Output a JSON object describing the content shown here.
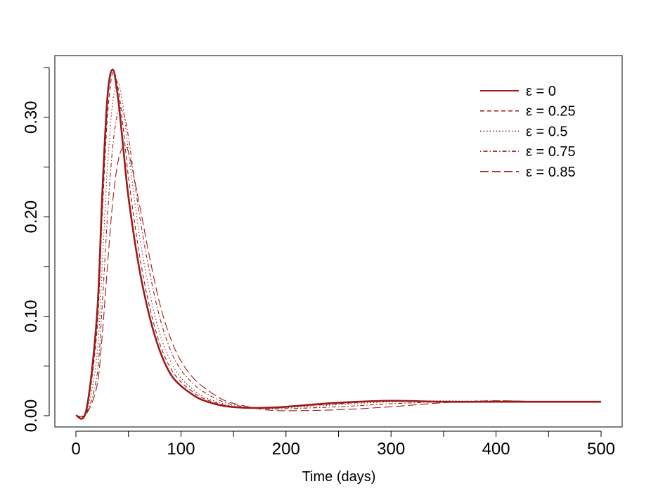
{
  "chart_data": {
    "type": "line",
    "title": "",
    "xlabel": "Time (days)",
    "ylabel": "",
    "xlim": [
      0,
      500
    ],
    "ylim": [
      0,
      0.35
    ],
    "xticks": [
      "0",
      "100",
      "200",
      "300",
      "400",
      "500"
    ],
    "yticks": [
      "0.00",
      "0.10",
      "0.20",
      "0.30"
    ],
    "grid": false,
    "legend_position": "top-right",
    "color": "#9b1b1b",
    "x": [
      0,
      10,
      20,
      25,
      30,
      35,
      40,
      45,
      50,
      60,
      70,
      80,
      90,
      100,
      110,
      120,
      140,
      160,
      180,
      200,
      250,
      300,
      350,
      400,
      450,
      500
    ],
    "series": [
      {
        "name": "ε = 0",
        "dash": "solid",
        "values": [
          0.0,
          0.006,
          0.1,
          0.22,
          0.32,
          0.348,
          0.32,
          0.27,
          0.22,
          0.15,
          0.1,
          0.065,
          0.042,
          0.03,
          0.022,
          0.016,
          0.01,
          0.008,
          0.008,
          0.009,
          0.013,
          0.015,
          0.014,
          0.014,
          0.014,
          0.014
        ]
      },
      {
        "name": "ε = 0.25",
        "dash": "dashed",
        "values": [
          0.0,
          0.005,
          0.085,
          0.2,
          0.3,
          0.345,
          0.33,
          0.29,
          0.24,
          0.165,
          0.11,
          0.072,
          0.048,
          0.034,
          0.025,
          0.018,
          0.011,
          0.008,
          0.008,
          0.009,
          0.012,
          0.015,
          0.014,
          0.014,
          0.014,
          0.014
        ]
      },
      {
        "name": "ε = 0.5",
        "dash": "dotted",
        "values": [
          0.0,
          0.004,
          0.06,
          0.15,
          0.25,
          0.315,
          0.335,
          0.31,
          0.265,
          0.185,
          0.125,
          0.082,
          0.055,
          0.038,
          0.028,
          0.02,
          0.012,
          0.008,
          0.007,
          0.008,
          0.011,
          0.014,
          0.015,
          0.014,
          0.014,
          0.014
        ]
      },
      {
        "name": "ε = 0.75",
        "dash": "dotdash",
        "values": [
          0.0,
          0.003,
          0.04,
          0.11,
          0.2,
          0.27,
          0.305,
          0.305,
          0.28,
          0.205,
          0.145,
          0.098,
          0.066,
          0.046,
          0.034,
          0.025,
          0.014,
          0.009,
          0.007,
          0.007,
          0.009,
          0.012,
          0.014,
          0.015,
          0.014,
          0.014
        ]
      },
      {
        "name": "ε = 0.85",
        "dash": "longdash",
        "values": [
          0.0,
          0.002,
          0.03,
          0.08,
          0.15,
          0.215,
          0.255,
          0.27,
          0.265,
          0.215,
          0.16,
          0.112,
          0.078,
          0.055,
          0.04,
          0.03,
          0.016,
          0.01,
          0.006,
          0.005,
          0.006,
          0.009,
          0.013,
          0.015,
          0.014,
          0.014
        ]
      }
    ]
  }
}
